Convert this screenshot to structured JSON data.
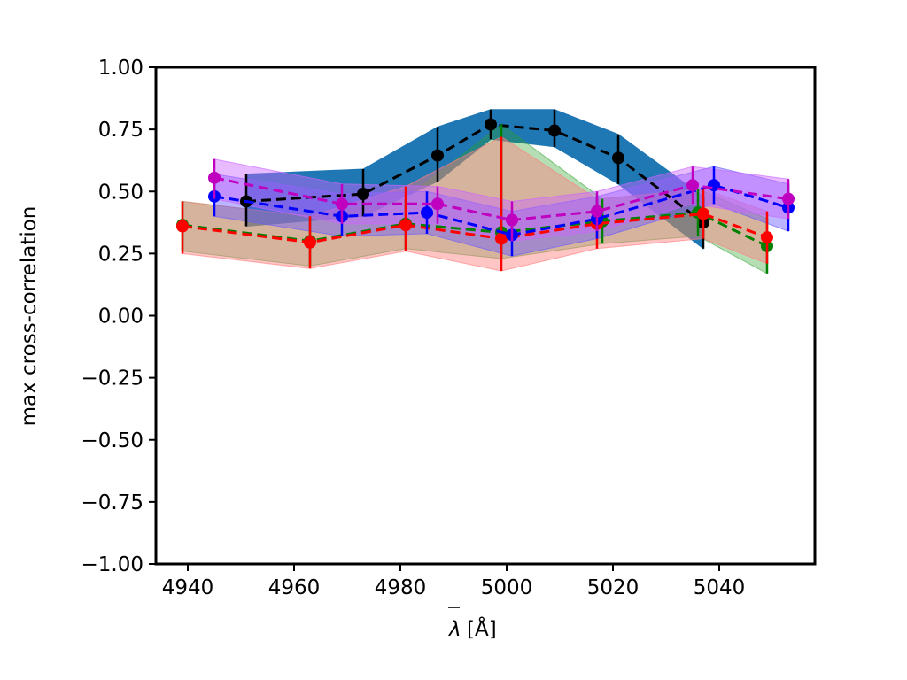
{
  "chart_data": {
    "type": "line",
    "title": "",
    "xlabel": "[Å]",
    "xlabel_symbol": "λ",
    "ylabel": "max cross-correlation",
    "xlim": [
      4934,
      5058
    ],
    "ylim": [
      -1.0,
      1.0
    ],
    "xticks": [
      4940,
      4960,
      4980,
      5000,
      5020,
      5040
    ],
    "yticks": [
      -1.0,
      -0.75,
      -0.5,
      -0.25,
      0.0,
      0.25,
      0.5,
      0.75,
      1.0
    ],
    "xtick_labels": [
      "4940",
      "4960",
      "4980",
      "5000",
      "5020",
      "5040"
    ],
    "ytick_labels": [
      "−1.00",
      "−0.75",
      "−0.50",
      "−0.25",
      "0.00",
      "0.25",
      "0.50",
      "0.75",
      "1.00"
    ],
    "grid": false,
    "legend": "none",
    "series": [
      {
        "color": "#000000",
        "band_color": "#1f77b4",
        "band_opacity": 1.0,
        "points": [
          {
            "x": 4951,
            "y": 0.46,
            "lo": 0.36,
            "hi": 0.57
          },
          {
            "x": 4973,
            "y": 0.49,
            "lo": 0.4,
            "hi": 0.59
          },
          {
            "x": 4987,
            "y": 0.645,
            "lo": 0.54,
            "hi": 0.76
          },
          {
            "x": 4997,
            "y": 0.77,
            "lo": 0.71,
            "hi": 0.83
          },
          {
            "x": 5009,
            "y": 0.745,
            "lo": 0.68,
            "hi": 0.83
          },
          {
            "x": 5021,
            "y": 0.635,
            "lo": 0.53,
            "hi": 0.73
          },
          {
            "x": 5037,
            "y": 0.375,
            "lo": 0.27,
            "hi": 0.48
          }
        ]
      },
      {
        "color": "#008000",
        "band_color": "#2ca02c",
        "band_opacity": 0.35,
        "points": [
          {
            "x": 4939,
            "y": 0.365,
            "lo": 0.26,
            "hi": 0.46
          },
          {
            "x": 4963,
            "y": 0.3,
            "lo": 0.2,
            "hi": 0.4
          },
          {
            "x": 4981,
            "y": 0.37,
            "lo": 0.27,
            "hi": 0.47
          },
          {
            "x": 4999,
            "y": 0.335,
            "lo": 0.23,
            "hi": 0.77
          },
          {
            "x": 5018,
            "y": 0.38,
            "lo": 0.29,
            "hi": 0.47
          },
          {
            "x": 5036,
            "y": 0.415,
            "lo": 0.32,
            "hi": 0.51
          },
          {
            "x": 5049,
            "y": 0.28,
            "lo": 0.17,
            "hi": 0.39
          }
        ]
      },
      {
        "color": "#ff0000",
        "band_color": "#ff7f7f",
        "band_opacity": 0.45,
        "points": [
          {
            "x": 4939,
            "y": 0.36,
            "lo": 0.25,
            "hi": 0.46
          },
          {
            "x": 4963,
            "y": 0.295,
            "lo": 0.19,
            "hi": 0.4
          },
          {
            "x": 4981,
            "y": 0.365,
            "lo": 0.26,
            "hi": 0.52
          },
          {
            "x": 4999,
            "y": 0.31,
            "lo": 0.18,
            "hi": 0.72
          },
          {
            "x": 5017,
            "y": 0.37,
            "lo": 0.27,
            "hi": 0.47
          },
          {
            "x": 5037,
            "y": 0.41,
            "lo": 0.31,
            "hi": 0.51
          },
          {
            "x": 5049,
            "y": 0.315,
            "lo": 0.21,
            "hi": 0.42
          }
        ]
      },
      {
        "color": "#0000ff",
        "band_color": "#6b5cff",
        "band_opacity": 0.45,
        "points": [
          {
            "x": 4945,
            "y": 0.48,
            "lo": 0.4,
            "hi": 0.57
          },
          {
            "x": 4969,
            "y": 0.4,
            "lo": 0.32,
            "hi": 0.49
          },
          {
            "x": 4985,
            "y": 0.415,
            "lo": 0.33,
            "hi": 0.5
          },
          {
            "x": 5001,
            "y": 0.325,
            "lo": 0.24,
            "hi": 0.42
          },
          {
            "x": 5017,
            "y": 0.39,
            "lo": 0.31,
            "hi": 0.48
          },
          {
            "x": 5039,
            "y": 0.525,
            "lo": 0.45,
            "hi": 0.6
          },
          {
            "x": 5053,
            "y": 0.435,
            "lo": 0.34,
            "hi": 0.53
          }
        ]
      },
      {
        "color": "#bf00bf",
        "band_color": "#cc66ff",
        "band_opacity": 0.45,
        "points": [
          {
            "x": 4945,
            "y": 0.555,
            "lo": 0.47,
            "hi": 0.63
          },
          {
            "x": 4969,
            "y": 0.45,
            "lo": 0.37,
            "hi": 0.53
          },
          {
            "x": 4987,
            "y": 0.45,
            "lo": 0.37,
            "hi": 0.52
          },
          {
            "x": 5001,
            "y": 0.385,
            "lo": 0.3,
            "hi": 0.46
          },
          {
            "x": 5017,
            "y": 0.42,
            "lo": 0.34,
            "hi": 0.5
          },
          {
            "x": 5035,
            "y": 0.525,
            "lo": 0.45,
            "hi": 0.6
          },
          {
            "x": 5053,
            "y": 0.47,
            "lo": 0.39,
            "hi": 0.55
          }
        ]
      }
    ]
  }
}
